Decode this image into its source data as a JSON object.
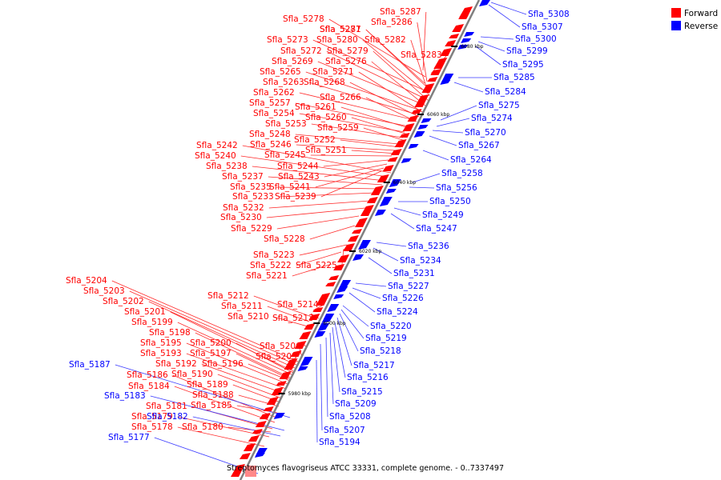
{
  "caption": "Streptomyces flavogriseus ATCC 33331, complete genome. - 0..7337497",
  "legend": [
    {
      "label": "Forward",
      "color": "#ff0000"
    },
    {
      "label": "Reverse",
      "color": "#0000ff"
    }
  ],
  "colors": {
    "forward": "#ff0000",
    "reverse": "#0000ff",
    "backbone": "#808080",
    "line_forward": "#ff2a2a",
    "line_reverse": "#3a3aff"
  },
  "scale_ticks": [
    "6080 kbp",
    "6060 kbp",
    "6040 kbp",
    "6020 kbp",
    "6000 kbp",
    "5980 kbp"
  ],
  "forward_genes": [
    "Sfla_5287",
    "Sfla_5278",
    "Sfla_5286",
    "Sfla_5277",
    "Sfla_5281",
    "Sfla_5273",
    "Sfla_5280",
    "Sfla_5282",
    "Sfla_5272",
    "Sfla_5279",
    "Sfla_5283",
    "Sfla_5269",
    "Sfla_5276",
    "Sfla_5265",
    "Sfla_5271",
    "Sfla_5263",
    "Sfla_5268",
    "Sfla_5262",
    "Sfla_5266",
    "Sfla_5257",
    "Sfla_5261",
    "Sfla_5254",
    "Sfla_5260",
    "Sfla_5253",
    "Sfla_5259",
    "Sfla_5248",
    "Sfla_5252",
    "Sfla_5242",
    "Sfla_5246",
    "Sfla_5251",
    "Sfla_5240",
    "Sfla_5245",
    "Sfla_5238",
    "Sfla_5244",
    "Sfla_5237",
    "Sfla_5243",
    "Sfla_5235",
    "Sfla_5241",
    "Sfla_5233",
    "Sfla_5239",
    "Sfla_5232",
    "Sfla_5230",
    "Sfla_5229",
    "Sfla_5228",
    "Sfla_5223",
    "Sfla_5222",
    "Sfla_5225",
    "Sfla_5221",
    "Sfla_5204",
    "Sfla_5203",
    "Sfla_5212",
    "Sfla_5202",
    "Sfla_5211",
    "Sfla_5214",
    "Sfla_5201",
    "Sfla_5210",
    "Sfla_5213",
    "Sfla_5199",
    "Sfla_5198",
    "Sfla_5195",
    "Sfla_5200",
    "Sfla_5206",
    "Sfla_5193",
    "Sfla_5197",
    "Sfla_5205",
    "Sfla_5192",
    "Sfla_5196",
    "Sfla_5186",
    "Sfla_5190",
    "Sfla_5189",
    "Sfla_5184",
    "Sfla_5188",
    "Sfla_5185",
    "Sfla_5181",
    "Sfla_5179",
    "Sfla_5180",
    "Sfla_5178"
  ],
  "reverse_genes": [
    "Sfla_5308",
    "Sfla_5307",
    "Sfla_5300",
    "Sfla_5299",
    "Sfla_5295",
    "Sfla_5285",
    "Sfla_5284",
    "Sfla_5275",
    "Sfla_5274",
    "Sfla_5270",
    "Sfla_5267",
    "Sfla_5264",
    "Sfla_5258",
    "Sfla_5256",
    "Sfla_5250",
    "Sfla_5249",
    "Sfla_5247",
    "Sfla_5236",
    "Sfla_5234",
    "Sfla_5231",
    "Sfla_5227",
    "Sfla_5226",
    "Sfla_5224",
    "Sfla_5220",
    "Sfla_5219",
    "Sfla_5218",
    "Sfla_5217",
    "Sfla_5216",
    "Sfla_5215",
    "Sfla_5209",
    "Sfla_5208",
    "Sfla_5207",
    "Sfla_5194",
    "Sfla_5187",
    "Sfla_5183",
    "Sfla_5182",
    "Sfla_5177"
  ]
}
